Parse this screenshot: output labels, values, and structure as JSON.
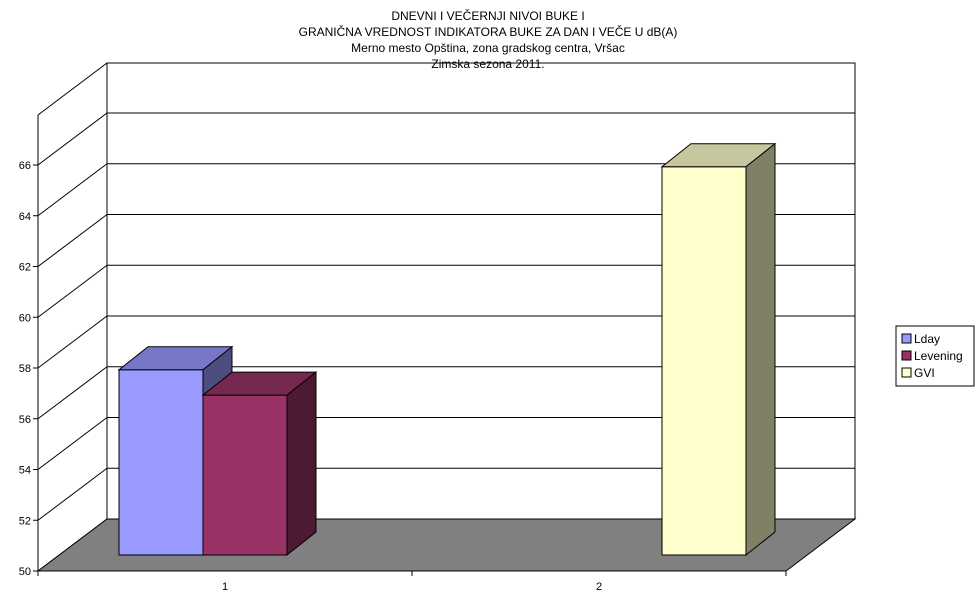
{
  "chart_data": {
    "type": "bar",
    "title_lines": [
      "DNEVNI I VEČERNJI NIVOI BUKE I",
      "GRANIČNA VREDNOST INDIKATORA BUKE ZA DAN I VEČE U dB(A)",
      "Merno mesto Opština, zona gradskog centra, Vršac",
      "Zimska sezona 2011."
    ],
    "categories": [
      "1",
      "2"
    ],
    "series": [
      {
        "name": "Lday",
        "values": [
          57.3,
          null
        ],
        "color": "#9999ff"
      },
      {
        "name": "Levening",
        "values": [
          56.3,
          null
        ],
        "color": "#993366"
      },
      {
        "name": "GVI",
        "values": [
          null,
          65.3
        ],
        "color": "#ffffcc"
      }
    ],
    "ylim": [
      50,
      66
    ],
    "yticks": [
      "50",
      "52",
      "54",
      "56",
      "58",
      "60",
      "62",
      "64",
      "66"
    ],
    "grid": true,
    "legend_position": "right"
  }
}
